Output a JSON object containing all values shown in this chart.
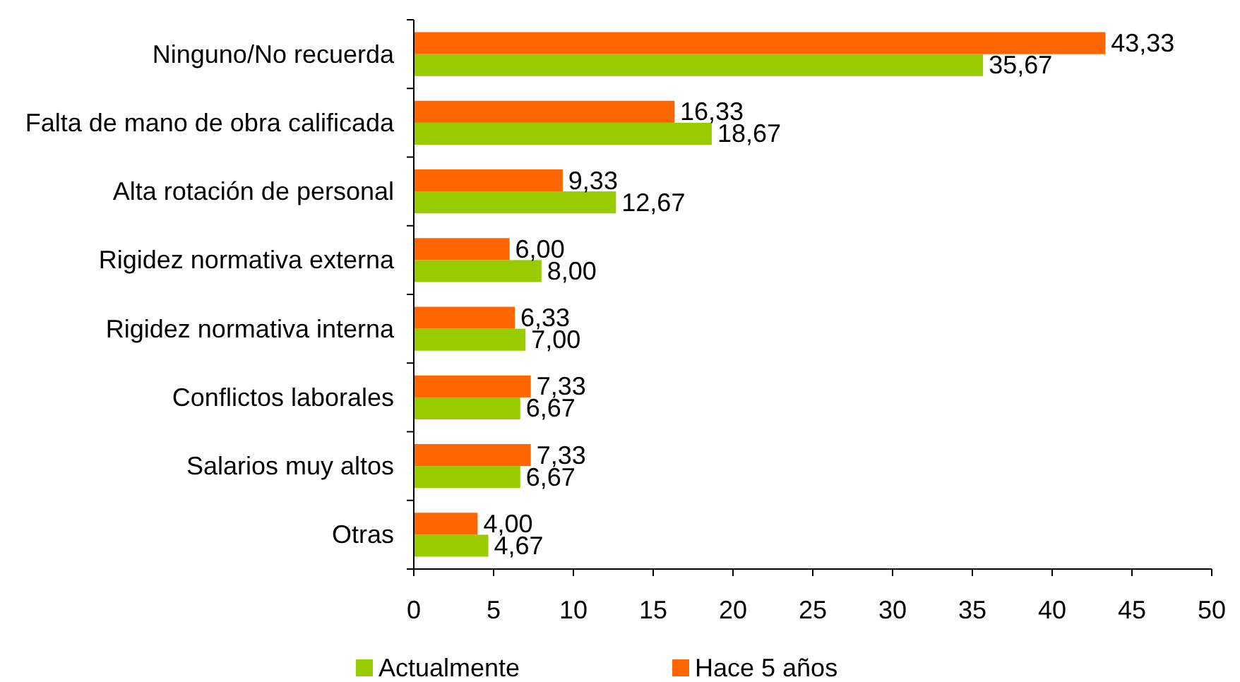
{
  "chart_data": {
    "type": "bar",
    "orientation": "horizontal",
    "categories": [
      "Ninguno/No recuerda",
      "Falta de mano de obra calificada",
      "Alta rotación de personal",
      "Rigidez normativa externa",
      "Rigidez normativa interna",
      "Conflictos laborales",
      "Salarios muy altos",
      "Otras"
    ],
    "series": [
      {
        "name": "Actualmente",
        "color": "#99cc00",
        "values": [
          35.67,
          18.67,
          12.67,
          8,
          7,
          6.67,
          6.67,
          4.67
        ],
        "value_labels": [
          "35,67",
          "18,67",
          "12,67",
          "8,00",
          "7,00",
          "6,67",
          "6,67",
          "4,67"
        ]
      },
      {
        "name": "Hace 5 años",
        "color": "#ff6600",
        "values": [
          43.33,
          16.33,
          9.33,
          6,
          6.33,
          7.33,
          7.33,
          4
        ],
        "value_labels": [
          "43,33",
          "16,33",
          "9,33",
          "6,00",
          "6,33",
          "7,33",
          "7,33",
          "4,00"
        ]
      }
    ],
    "xlim": [
      0,
      50
    ],
    "xticks": [
      0,
      5,
      10,
      15,
      20,
      25,
      30,
      35,
      40,
      45,
      50
    ],
    "legend": "bottom"
  }
}
